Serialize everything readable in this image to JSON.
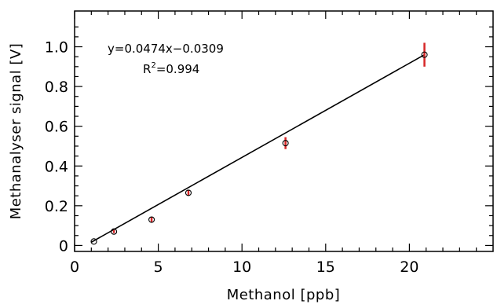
{
  "chart_data": {
    "type": "scatter",
    "xlabel": "Methanol [ppb]",
    "ylabel": "Methanalyser signal [V]",
    "xlim": [
      0,
      25
    ],
    "ylim": [
      -0.03,
      1.18
    ],
    "x_ticks": [
      0,
      5,
      10,
      15,
      20
    ],
    "x_tick_labels": [
      "0",
      "5",
      "10",
      "15",
      "20"
    ],
    "y_ticks": [
      0,
      0.2,
      0.4,
      0.6,
      0.8,
      1.0
    ],
    "y_tick_labels": [
      "0",
      "0.2",
      "0.4",
      "0.6",
      "0.8",
      "1.0"
    ],
    "grid": false,
    "legend": "none",
    "annotations": {
      "equation": "y=0.0474x−0.0309",
      "r2_prefix": "R",
      "r2_exp": "2",
      "r2_value": "=0.994"
    },
    "points": [
      {
        "x": 1.15,
        "y": 0.02,
        "err": 0.0
      },
      {
        "x": 2.35,
        "y": 0.07,
        "err": 0.008
      },
      {
        "x": 4.6,
        "y": 0.13,
        "err": 0.012
      },
      {
        "x": 6.8,
        "y": 0.265,
        "err": 0.015
      },
      {
        "x": 12.6,
        "y": 0.515,
        "err": 0.03
      },
      {
        "x": 20.9,
        "y": 0.96,
        "err": 0.06
      }
    ],
    "fit": {
      "slope": 0.0474,
      "intercept": -0.0309,
      "x_range": [
        1.0,
        20.9
      ]
    },
    "colors": {
      "axes": "#000000",
      "markers": "#000000",
      "error_bars": "#d62728",
      "fit_line": "#000000"
    }
  }
}
